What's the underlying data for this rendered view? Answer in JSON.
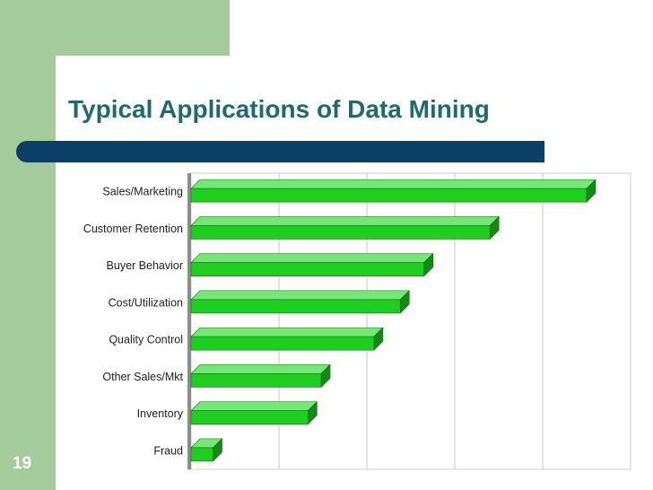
{
  "slide": {
    "title": "Typical Applications of Data Mining",
    "page_number": "19"
  },
  "colors": {
    "green_panel": "#a3cc9a",
    "title_text": "#1f6b6b",
    "rule_bar": "#0b3f66",
    "bar_front": "#1fcf1f",
    "bar_top": "#74e874",
    "bar_side": "#138a13"
  },
  "chart_data": {
    "type": "bar",
    "orientation": "horizontal",
    "categories": [
      "Sales/Marketing",
      "Customer Retention",
      "Buyer Behavior",
      "Cost/Utilization",
      "Quality Control",
      "Other Sales/Mkt",
      "Inventory",
      "Fraud"
    ],
    "values": [
      45,
      34,
      26.5,
      23.8,
      20.8,
      14.8,
      13.3,
      2.5
    ],
    "xlim": [
      0,
      50
    ],
    "grid": true
  }
}
